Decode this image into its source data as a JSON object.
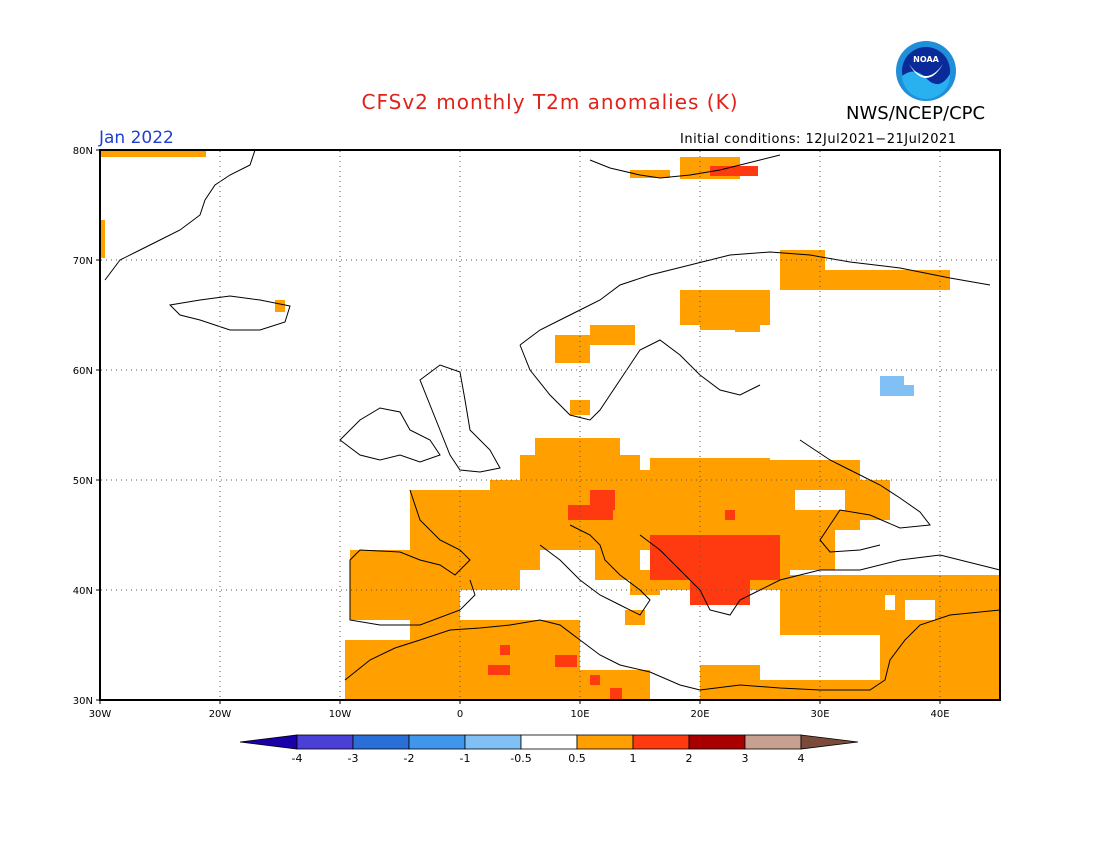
{
  "header": {
    "title": "CFSv2 monthly T2m anomalies (K)",
    "agency": "NWS/NCEP/CPC",
    "month": "Jan 2022",
    "initial_conditions": "Initial conditions: 12Jul2021−21Jul2021",
    "logo_text": "NOAA"
  },
  "axes": {
    "lat_labels": [
      "80N",
      "70N",
      "60N",
      "50N",
      "40N",
      "30N"
    ],
    "lon_labels": [
      "30W",
      "20W",
      "10W",
      "0",
      "10E",
      "20E",
      "30E",
      "40E"
    ],
    "lat_range": [
      30,
      80
    ],
    "lon_range": [
      -30,
      45
    ],
    "grid": "dotted"
  },
  "colorbar": {
    "levels": [
      "-4",
      "-3",
      "-2",
      "-1",
      "-0.5",
      "0.5",
      "1",
      "2",
      "3",
      "4"
    ],
    "colors": [
      "#1a00a8",
      "#4a3fd6",
      "#2a6fd8",
      "#3f96ea",
      "#80c0f5",
      "#ffffff",
      "#ffa000",
      "#ff3a10",
      "#a80000",
      "#c8a090",
      "#7a4a3a"
    ]
  },
  "map_data": {
    "anomaly_regions": [
      {
        "category": "0.5 to 1",
        "color": "#ffa000",
        "area": "Western and Central Europe"
      },
      {
        "category": "0.5 to 1",
        "color": "#ffa000",
        "area": "Iberian Peninsula"
      },
      {
        "category": "0.5 to 1",
        "color": "#ffa000",
        "area": "North Africa"
      },
      {
        "category": "0.5 to 1",
        "color": "#ffa000",
        "area": "Turkey and Middle East"
      },
      {
        "category": "0.5 to 1",
        "color": "#ffa000",
        "area": "Northern Scandinavia and Kola"
      },
      {
        "category": "1 to 2",
        "color": "#ff3a10",
        "area": "Balkans"
      },
      {
        "category": "1 to 2",
        "color": "#ff3a10",
        "area": "Alps"
      },
      {
        "category": "-1 to -0.5",
        "color": "#80c0f5",
        "area": "Western Russia"
      }
    ]
  }
}
